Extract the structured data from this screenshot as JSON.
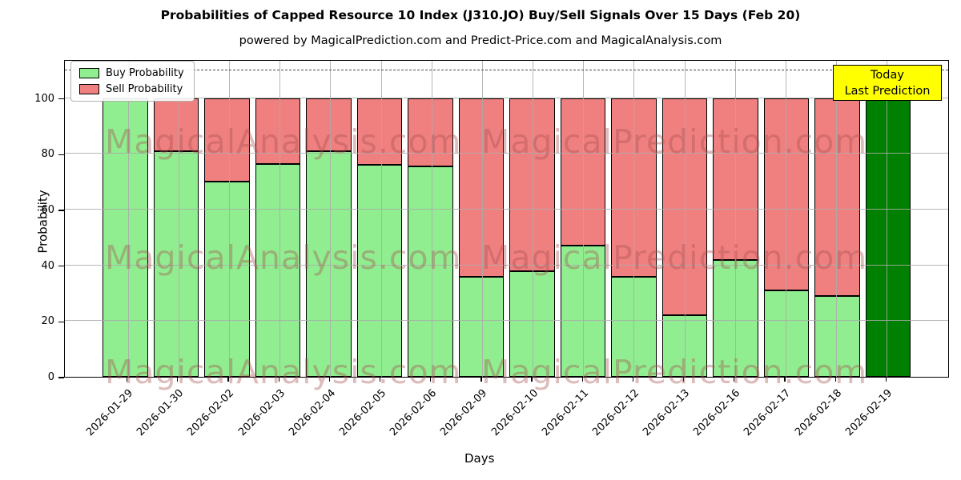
{
  "title": "Probabilities of Capped Resource 10 Index (J310.JO) Buy/Sell Signals Over 15 Days (Feb 20)",
  "subtitle": "powered by MagicalPrediction.com and Predict-Price.com and MagicalAnalysis.com",
  "legend": {
    "buy_label": "Buy Probability",
    "sell_label": "Sell Probability"
  },
  "annotation": {
    "line1": "Today",
    "line2": "Last Prediction"
  },
  "watermarks": {
    "left_text": "MagicalAnalysis.com",
    "right_text": "MagicalPrediction.com"
  },
  "colors": {
    "buy": "#90EE90",
    "sell": "#F08080",
    "today_bar": "#008000",
    "edge": "#000000",
    "annotation_bg": "#FFFF00",
    "grid": "#aaaaaa"
  },
  "chart_data": {
    "type": "bar",
    "stacked": true,
    "title": "Probabilities of Capped Resource 10 Index (J310.JO) Buy/Sell Signals Over 15 Days (Feb 20)",
    "xlabel": "Days",
    "ylabel": "Probability",
    "ylim": [
      0,
      114
    ],
    "yticks": [
      0,
      20,
      40,
      60,
      80,
      100
    ],
    "dashed_hline_y": 110,
    "grid": true,
    "legend_position": "upper left",
    "categories": [
      "2026-01-29",
      "2026-01-30",
      "2026-02-02",
      "2026-02-03",
      "2026-02-04",
      "2026-02-05",
      "2026-02-06",
      "2026-02-09",
      "2026-02-10",
      "2026-02-11",
      "2026-02-12",
      "2026-02-13",
      "2026-02-16",
      "2026-02-17",
      "2026-02-18",
      "2026-02-19"
    ],
    "series": [
      {
        "name": "Buy Probability",
        "values": [
          100,
          81,
          70,
          76.5,
          81,
          76,
          75.5,
          36,
          38,
          47,
          36,
          22,
          42,
          31,
          29,
          100
        ]
      },
      {
        "name": "Sell Probability",
        "values": [
          0,
          19,
          30,
          23.5,
          19,
          24,
          24.5,
          64,
          62,
          53,
          64,
          78,
          58,
          69,
          71,
          0
        ]
      }
    ],
    "today_index": 15,
    "today_note": "Today / Last Prediction bar drawn in dark green"
  }
}
